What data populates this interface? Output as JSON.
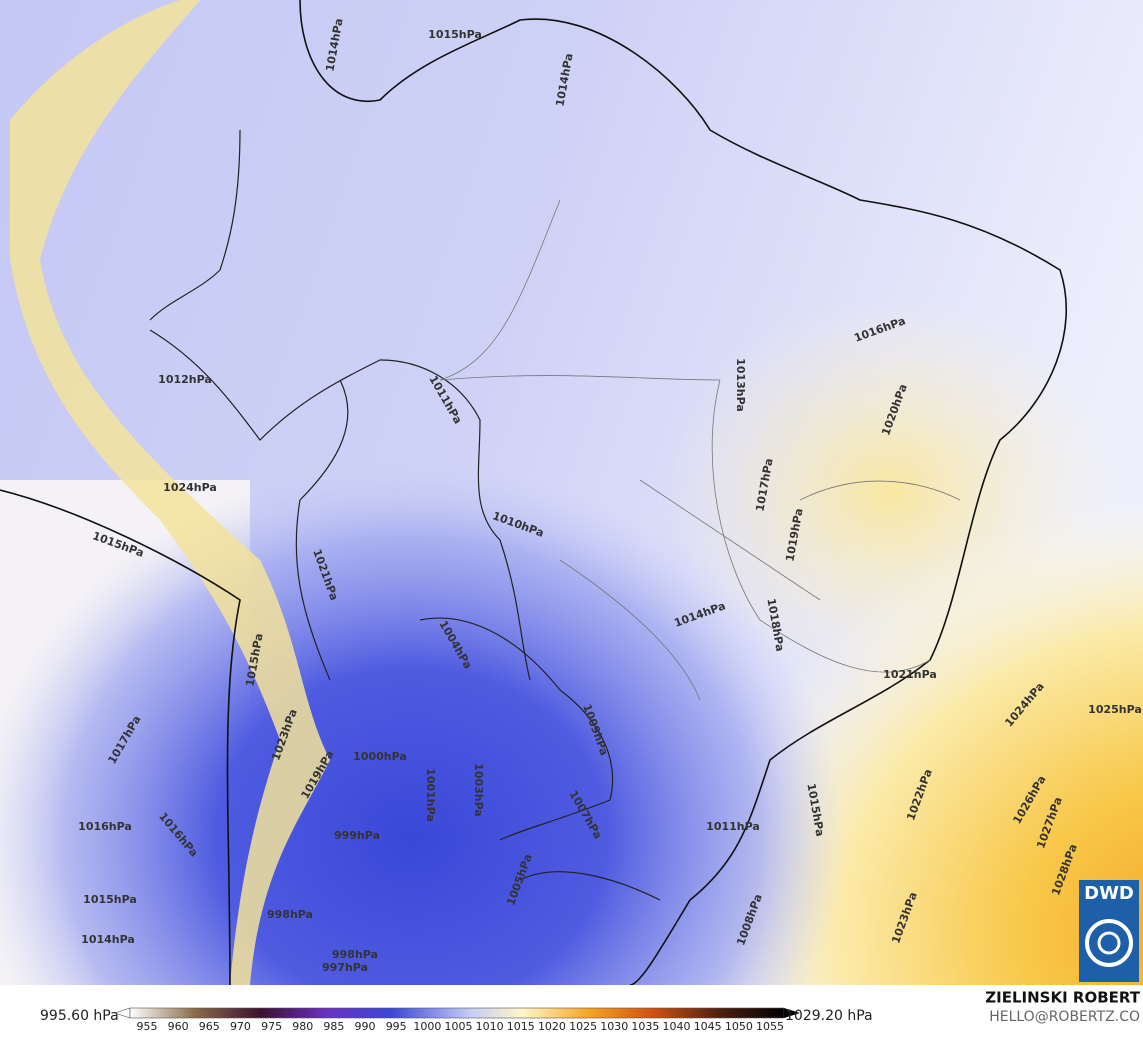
{
  "map": {
    "isobar_labels": [
      "1015hPa",
      "1014hPa",
      "1014hPa",
      "1016hPa",
      "1013hPa",
      "1011hPa",
      "1012hPa",
      "1020hPa",
      "1017hPa",
      "1019hPa",
      "1024hPa",
      "1010hPa",
      "1015hPa",
      "1014hPa",
      "1018hPa",
      "1021hPa",
      "1004hPa",
      "1024hPa",
      "1025hPa",
      "1009hPa",
      "1000hPa",
      "1001hPa",
      "1003hPa",
      "1007hPa",
      "1017hPa",
      "1016hPa",
      "1016hPa",
      "1011hPa",
      "1015hPa",
      "1022hPa",
      "1026hPa",
      "1027hPa",
      "999hPa",
      "1005hPa",
      "1028hPa",
      "1015hPa",
      "998hPa",
      "1023hPa",
      "1008hPa",
      "1014hPa",
      "998hPa",
      "997hPa",
      "1019hPa",
      "1023hPa",
      "1015hPa",
      "1021hPa"
    ]
  },
  "colorbar": {
    "min_label": "995.60 hPa",
    "max_label": "1029.20 hPa",
    "ticks": [
      955,
      960,
      965,
      970,
      975,
      980,
      985,
      990,
      995,
      1000,
      1005,
      1010,
      1015,
      1020,
      1025,
      1030,
      1035,
      1040,
      1045,
      1050,
      1055
    ]
  },
  "credit": {
    "author": "ZIELINSKI ROBERT",
    "contact": "HELLO@ROBERTZ.CO"
  },
  "logo": "DWD"
}
